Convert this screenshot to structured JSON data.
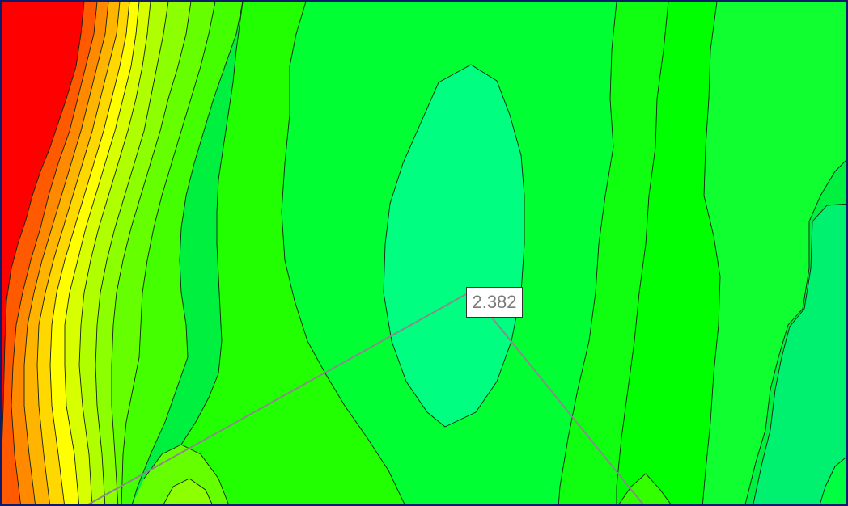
{
  "map": {
    "style": "filled-contour",
    "colors": {
      "high": "#ff0000",
      "mid": "#ffff00",
      "low": "#00ff00",
      "trough": "#00ff80",
      "border": "#101a6a",
      "leader": "#8a8a8a"
    },
    "label": {
      "value": "2.382"
    }
  }
}
